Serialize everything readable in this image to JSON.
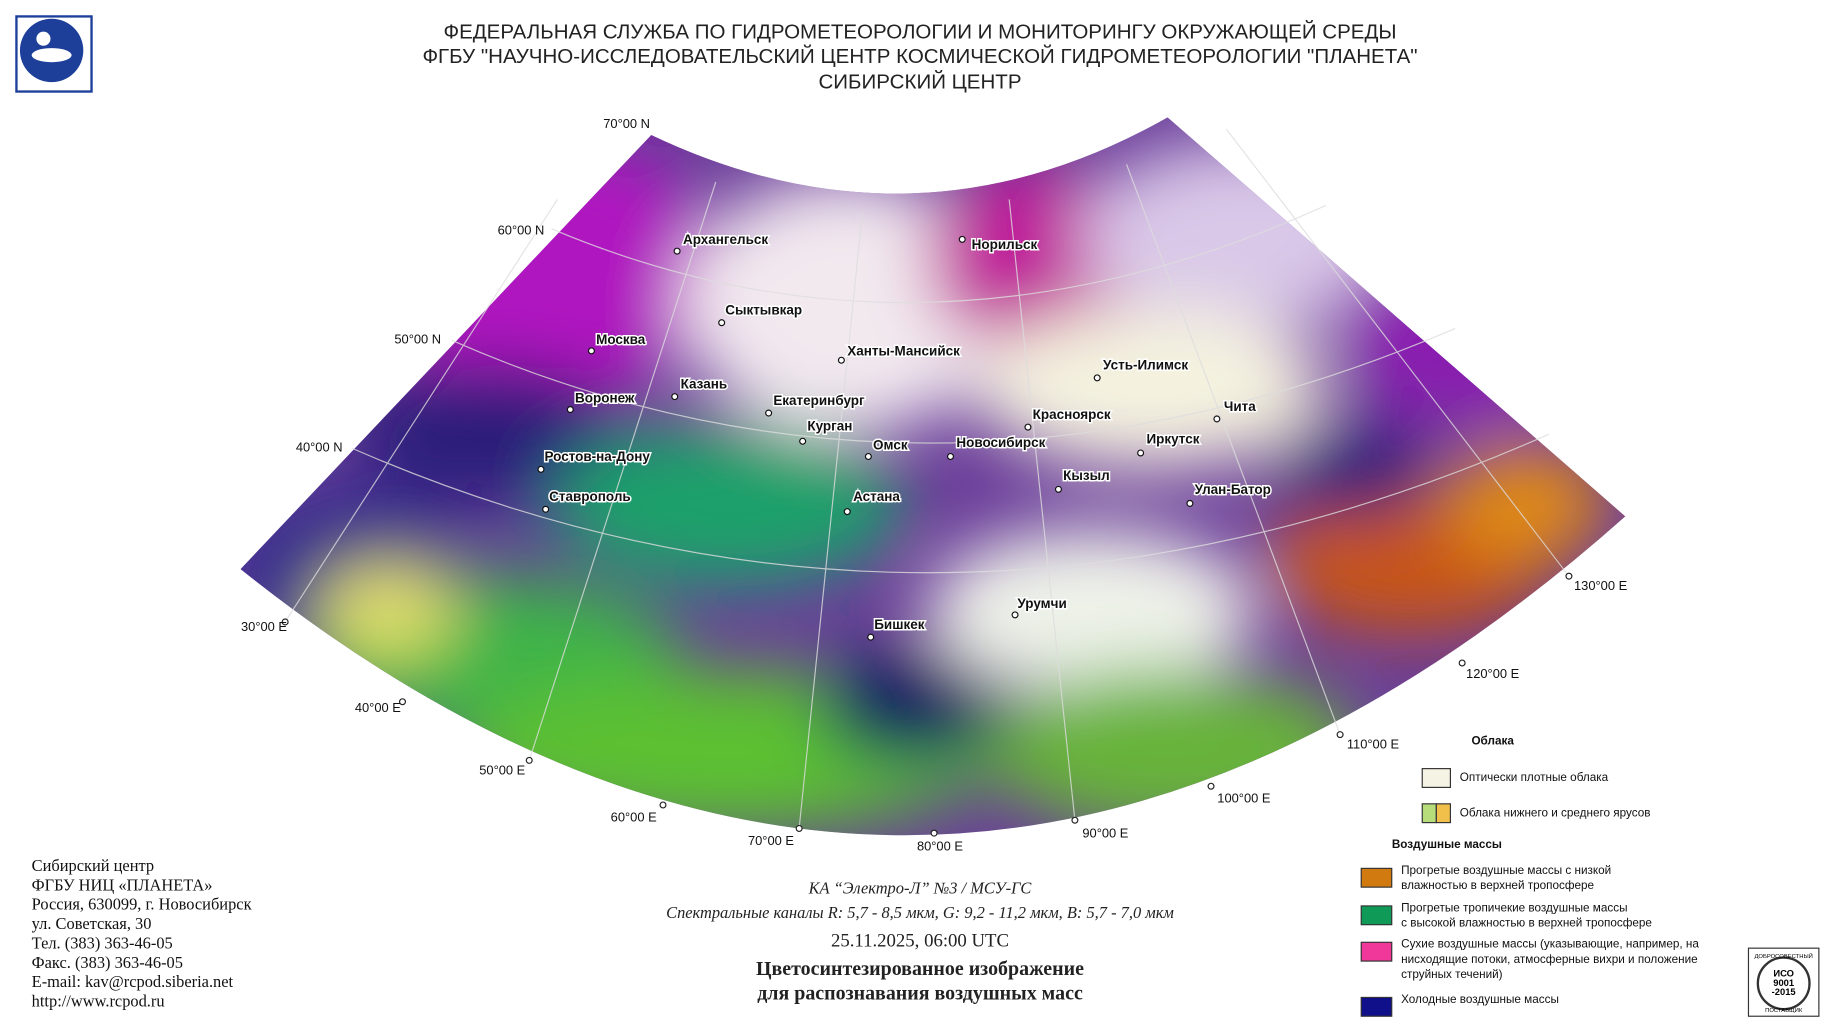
{
  "header": {
    "lines": [
      "ФЕДЕРАЛЬНАЯ СЛУЖБА ПО ГИДРОМЕТЕОРОЛОГИИ И МОНИТОРИНГУ ОКРУЖАЮЩЕЙ СРЕДЫ",
      "ФГБУ \"НАУЧНО-ИССЛЕДОВАТЕЛЬСКИЙ ЦЕНТР КОСМИЧЕСКОЙ ГИДРОМЕТЕОРОЛОГИИ \"ПЛАНЕТА\"",
      "СИБИРСКИЙ ЦЕНТР"
    ]
  },
  "map": {
    "latitudes": [
      "70°00 N",
      "60°00 N",
      "50°00 N",
      "40°00 N"
    ],
    "longitudes": [
      "30°00 E",
      "40°00 E",
      "50°00 E",
      "60°00 E",
      "70°00 E",
      "80°00 E",
      "90°00 E",
      "100°00 E",
      "110°00 E",
      "120°00 E",
      "130°00 E"
    ],
    "cities": [
      "Архангельск",
      "Сыктывкар",
      "Москва",
      "Казань",
      "Воронеж",
      "Ростов-на-Дону",
      "Ставрополь",
      "Ханты-Мансийск",
      "Екатеринбург",
      "Курган",
      "Омск",
      "Новосибирск",
      "Астана",
      "Норильск",
      "Красноярск",
      "Усть-Илимск",
      "Иркутск",
      "Чита",
      "Кызыл",
      "Улан-Батор",
      "Урумчи",
      "Бишкек"
    ]
  },
  "legend": {
    "clouds_title": "Облака",
    "clouds": [
      "Оптически плотные облака",
      "Облака нижнего и среднего ярусов"
    ],
    "air_title": "Воздушные массы",
    "air": [
      [
        "Прогретые воздушные массы с низкой",
        "влажностью в верхней тропосфере"
      ],
      [
        "Прогретые тропичекие воздушные массы",
        "с высокой влажностью в верхней тропосфере"
      ],
      [
        "Сухие воздушные массы (указывающие, например, на",
        "нисходящие потоки, атмосферные вихри и положение",
        "струйных течений)"
      ],
      [
        "Холодные воздушные массы"
      ]
    ]
  },
  "caption": {
    "satellite": "КА “Электро-Л” №3 / МСУ-ГС",
    "channels": "Спектральные каналы R: 5,7 - 8,5 мкм, G: 9,2 - 11,2 мкм, B: 5,7 - 7,0 мкм",
    "datetime": "25.11.2025, 06:00 UTC",
    "title": [
      "Цветосинтезированное изображение",
      "для распознавания воздушных масс"
    ]
  },
  "contacts": [
    "Сибирский центр",
    "ФГБУ НИЦ «ПЛАНЕТА»",
    "Россия, 630099, г. Новосибирск",
    "ул. Советская, 30",
    "Тел. (383) 363-46-05",
    "Факс. (383) 363-46-05",
    "E-mail: kav@rcpod.siberia.net",
    "http://www.rcpod.ru"
  ],
  "iso_badge": {
    "top": "ДОБРОСОВЕСТНЫЙ",
    "mark": [
      "ИСО",
      "9001",
      "-2015"
    ],
    "bottom": "ПОСТАВЩИК"
  }
}
